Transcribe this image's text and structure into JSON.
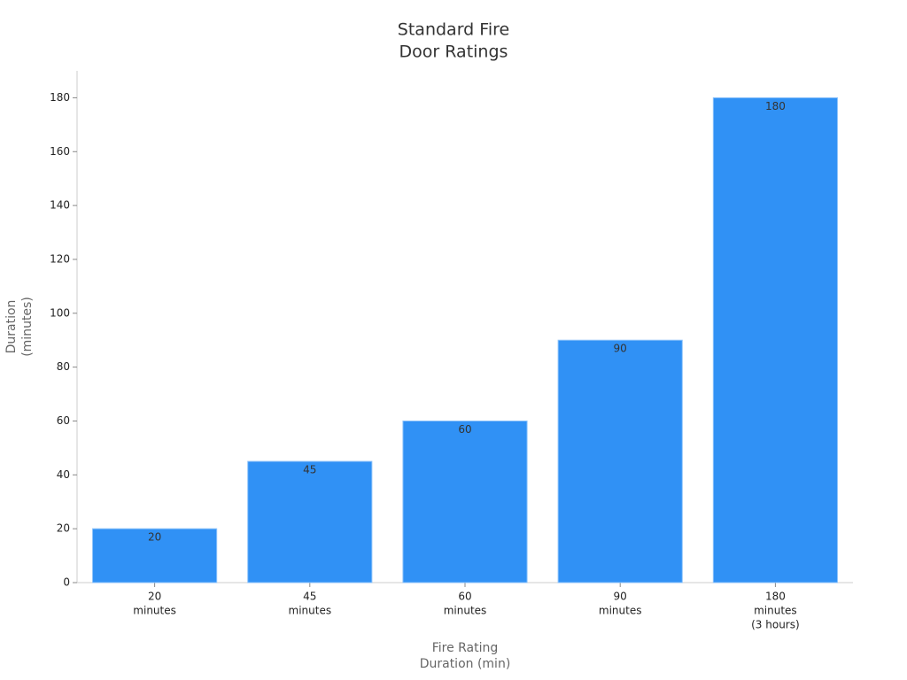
{
  "chart_data": {
    "type": "bar",
    "title": [
      "Standard Fire",
      "Door Ratings"
    ],
    "x_label": [
      "Fire Rating",
      "Duration (min)"
    ],
    "y_label": [
      "Duration",
      "(minutes)"
    ],
    "categories": [
      [
        "20",
        "minutes"
      ],
      [
        "45",
        "minutes"
      ],
      [
        "60",
        "minutes"
      ],
      [
        "90",
        "minutes"
      ],
      [
        "180",
        "minutes",
        "(3 hours)"
      ]
    ],
    "values": [
      20,
      45,
      60,
      90,
      180
    ],
    "color": "#3091f5",
    "ylim": [
      0,
      190
    ],
    "yticks": [
      0,
      20,
      40,
      60,
      80,
      100,
      120,
      140,
      160,
      180
    ],
    "grid": false
  }
}
